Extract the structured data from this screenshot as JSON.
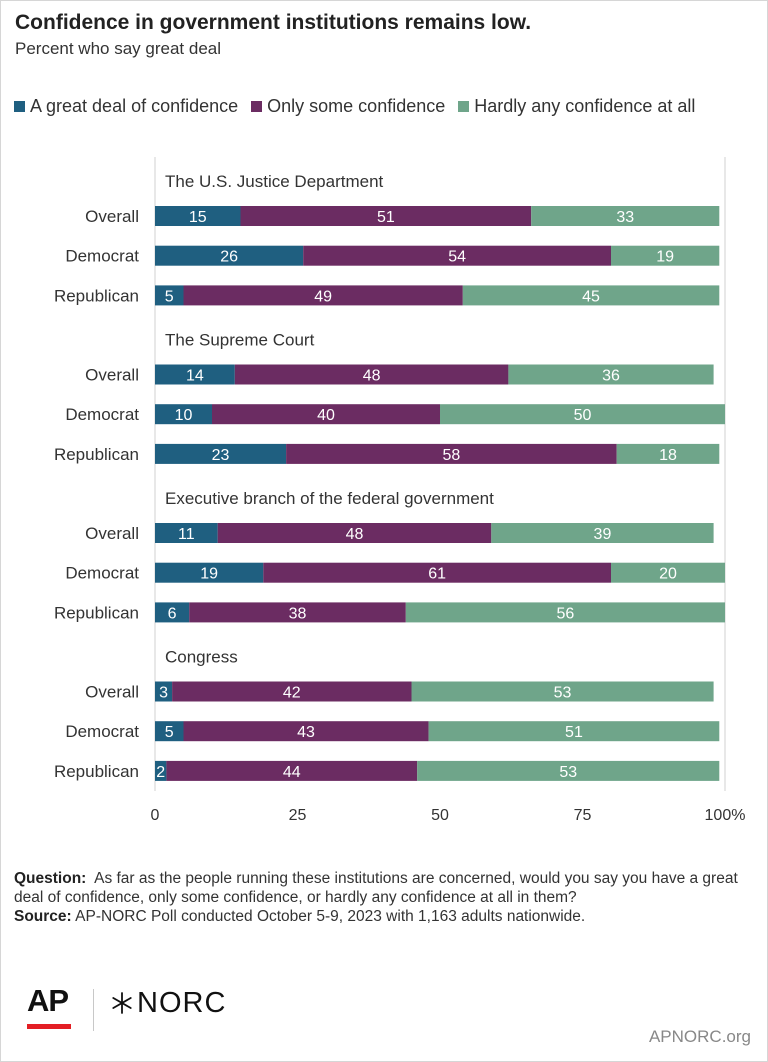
{
  "title": "Confidence in government institutions remains low.",
  "subtitle": "Percent who say great deal",
  "colors": {
    "great_deal": "#1f5f80",
    "only_some": "#6b2c62",
    "hardly_any": "#6fa58a",
    "axis": "#333333",
    "grid": "#d0d0d0"
  },
  "chart_data": {
    "type": "bar",
    "orientation": "horizontal",
    "stacked": true,
    "xlim": [
      0,
      100
    ],
    "xticks": [
      {
        "value": 0,
        "label": "0"
      },
      {
        "value": 25,
        "label": "25"
      },
      {
        "value": 50,
        "label": "50"
      },
      {
        "value": 75,
        "label": "75"
      },
      {
        "value": 100,
        "label": "100%"
      }
    ],
    "grid": "vertical at 0 and 100",
    "legend_position": "top",
    "series": [
      {
        "name": "A great deal of confidence",
        "color": "#1f5f80"
      },
      {
        "name": "Only some confidence",
        "color": "#6b2c62"
      },
      {
        "name": "Hardly any confidence at all",
        "color": "#6fa58a"
      }
    ],
    "groups": [
      {
        "label": "The U.S. Justice Department",
        "rows": [
          {
            "label": "Overall",
            "values": [
              15,
              51,
              33
            ]
          },
          {
            "label": "Democrat",
            "values": [
              26,
              54,
              19
            ]
          },
          {
            "label": "Republican",
            "values": [
              5,
              49,
              45
            ]
          }
        ]
      },
      {
        "label": "The Supreme Court",
        "rows": [
          {
            "label": "Overall",
            "values": [
              14,
              48,
              36
            ]
          },
          {
            "label": "Democrat",
            "values": [
              10,
              40,
              50
            ]
          },
          {
            "label": "Republican",
            "values": [
              23,
              58,
              18
            ]
          }
        ]
      },
      {
        "label": "Executive branch of the federal government",
        "rows": [
          {
            "label": "Overall",
            "values": [
              11,
              48,
              39
            ]
          },
          {
            "label": "Democrat",
            "values": [
              19,
              61,
              20
            ]
          },
          {
            "label": "Republican",
            "values": [
              6,
              38,
              56
            ]
          }
        ]
      },
      {
        "label": "Congress",
        "rows": [
          {
            "label": "Overall",
            "values": [
              3,
              42,
              53
            ]
          },
          {
            "label": "Democrat",
            "values": [
              5,
              43,
              51
            ]
          },
          {
            "label": "Republican",
            "values": [
              2,
              44,
              53
            ]
          }
        ]
      }
    ]
  },
  "footer": {
    "question_label": "Question:",
    "question_text": "As far as the people running these institutions are concerned, would you say you have a great deal of confidence, only some confidence, or hardly any confidence at all in them?",
    "source_label": "Source:",
    "source_text": "AP-NORC Poll conducted October 5-9, 2023 with 1,163 adults nationwide."
  },
  "logos": {
    "ap_text": "AP",
    "norc_text": "NORC"
  },
  "site": "APNORC.org"
}
